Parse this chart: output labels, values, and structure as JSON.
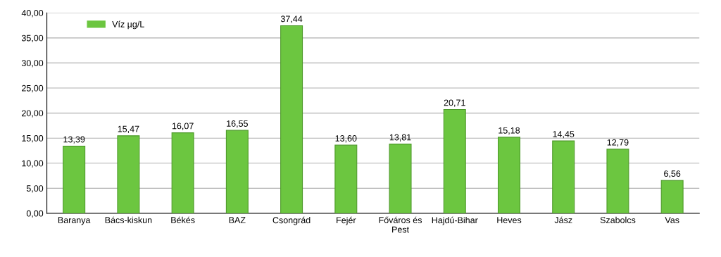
{
  "chart_data": {
    "type": "bar",
    "categories": [
      "Baranya",
      "Bács-kiskun",
      "Békés",
      "BAZ",
      "Csongrád",
      "Fejér",
      "Főváros és\nPest",
      "Hajdú-Bihar",
      "Heves",
      "Jász",
      "Szabolcs",
      "Vas"
    ],
    "series": [
      {
        "name": "Víz µg/L",
        "color": "#6cc640",
        "values": [
          13.39,
          15.47,
          16.07,
          16.55,
          37.44,
          13.6,
          13.81,
          20.71,
          15.18,
          14.45,
          12.79,
          6.56
        ],
        "value_labels": [
          "13,39",
          "15,47",
          "16,07",
          "16,55",
          "37,44",
          "13,60",
          "13,81",
          "20,71",
          "15,18",
          "14,45",
          "12,79",
          "6,56"
        ]
      }
    ],
    "ylim": [
      0,
      40
    ],
    "yticks": [
      {
        "value": 0,
        "label": "0,00"
      },
      {
        "value": 5,
        "label": "5,00"
      },
      {
        "value": 10,
        "label": "10,00"
      },
      {
        "value": 15,
        "label": "15,00"
      },
      {
        "value": 20,
        "label": "20,00"
      },
      {
        "value": 25,
        "label": "25,00"
      },
      {
        "value": 30,
        "label": "30,00"
      },
      {
        "value": 35,
        "label": "35,00"
      },
      {
        "value": 40,
        "label": "40,00"
      }
    ],
    "grid": "y",
    "legend": "top left"
  }
}
